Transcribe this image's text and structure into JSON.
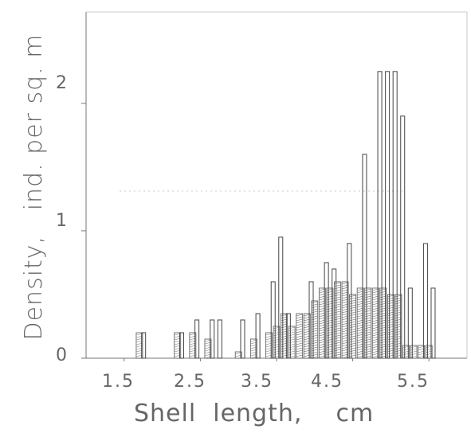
{
  "chart_data": {
    "type": "bar",
    "xlabel": "Shell  length,    cm",
    "ylabel": "Density,   ind. per sq. m",
    "xlim": [
      1.0,
      6.0
    ],
    "ylim": [
      0,
      2.5
    ],
    "x_ticks": [
      "1.5",
      "2.5",
      "3.5",
      "4.5",
      "5.5"
    ],
    "y_ticks": [
      "0",
      "1",
      "2"
    ],
    "series": [
      {
        "style": "hatched",
        "x": [
          1.7,
          2.2,
          2.4,
          2.6,
          3.0,
          3.2,
          3.4,
          3.5,
          3.6,
          3.7,
          3.8,
          3.9,
          4.0,
          4.1,
          4.2,
          4.3,
          4.4,
          4.5,
          4.6,
          4.7,
          4.8,
          4.9,
          5.0,
          5.1,
          5.2,
          5.3,
          5.4,
          5.5
        ],
        "values": [
          0.2,
          0.2,
          0.2,
          0.15,
          0.05,
          0.15,
          0.2,
          0.25,
          0.35,
          0.25,
          0.35,
          0.35,
          0.45,
          0.55,
          0.55,
          0.6,
          0.6,
          0.5,
          0.55,
          0.55,
          0.55,
          0.55,
          0.5,
          0.5,
          0.1,
          0.1,
          0.1,
          0.1
        ]
      },
      {
        "style": "outline",
        "x": [
          1.75,
          2.25,
          2.45,
          2.65,
          2.75,
          3.05,
          3.25,
          3.45,
          3.55,
          3.65,
          3.95,
          4.15,
          4.25,
          4.45,
          4.65,
          4.85,
          4.95,
          5.05,
          5.15,
          5.25,
          5.45,
          5.55
        ],
        "values": [
          0.2,
          0.2,
          0.3,
          0.3,
          0.3,
          0.3,
          0.35,
          0.6,
          0.95,
          0.35,
          0.6,
          0.75,
          0.7,
          0.9,
          1.6,
          2.25,
          2.25,
          2.25,
          1.9,
          0.55,
          0.9,
          0.55
        ]
      }
    ]
  }
}
